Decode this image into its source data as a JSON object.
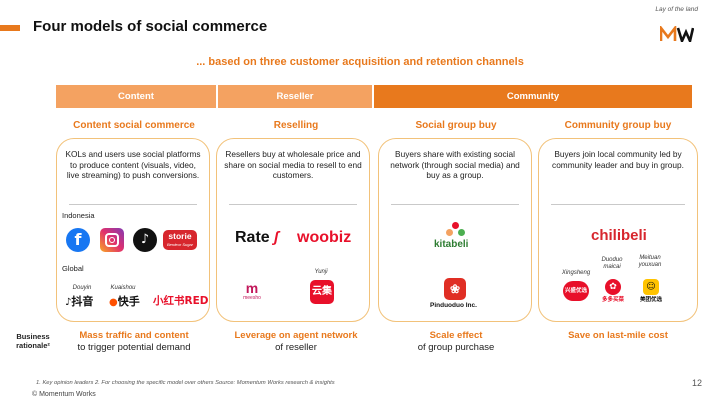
{
  "header": {
    "title": "Four models of social commerce",
    "corner_note": "Lay of the land"
  },
  "subtitle": "... based on three customer acquisition and retention channels",
  "channels": [
    {
      "label": "Content"
    },
    {
      "label": "Reseller"
    },
    {
      "label": "Community"
    }
  ],
  "models": [
    {
      "title": "Content social commerce",
      "description": "KOLs and users use social platforms to produce content (visuals, video, live streaming) to push conversions.",
      "region_1": "Indonesia",
      "region_2": "Global",
      "brand_storie": "storie",
      "brand_storie_tag": "Berdeur Sugar",
      "cap_douyin": "Douyin",
      "cap_kuaishou": "Kuaishou",
      "brand_douyin": "抖音",
      "brand_kuaishou": "快手",
      "brand_xhs": "小红书RED"
    },
    {
      "title": "Reselling",
      "description": "Resellers buy at wholesale price and share on social media to resell to end customers.",
      "brand_rate": "Rate",
      "brand_woobiz": "woobiz",
      "cap_yunji": "Yunji",
      "brand_yunji": "云集",
      "brand_meesho": "meesho"
    },
    {
      "title": "Social group buy",
      "description": "Buyers share with existing social network (through social media) and buy as a group.",
      "brand_kitabeli": "kitabeli",
      "brand_pinduoduo": "Pinduoduo Inc."
    },
    {
      "title": "Community group buy",
      "description": "Buyers join local community led by community leader and buy in group.",
      "brand_chilibeli": "chilibeli",
      "cap_xingsheng": "Xingsheng",
      "cap_duoduo": "Duoduo maicai",
      "cap_meituan": "Meituan youxuan",
      "brand_xingsheng": "兴盛优选",
      "brand_duoduo": "多多买菜",
      "brand_meituan": "美团优选"
    }
  ],
  "rationale": {
    "row_label": "Business rationale²",
    "items": [
      {
        "strong": "Mass traffic and content",
        "rest": "to trigger potential demand"
      },
      {
        "strong": "Leverage on agent network",
        "rest": "of reseller"
      },
      {
        "strong": "Scale effect",
        "rest": "of group purchase"
      },
      {
        "strong": "Save on last-mile cost",
        "rest": ""
      }
    ]
  },
  "footer": {
    "footnote": "1. Key opinion leaders   2. For choosing the specific model over others   Source: Momentum Works research & insights",
    "copyright": "© Momentum Works",
    "page_number": "12"
  },
  "colors": {
    "accent": "#E8791D",
    "light_accent": "#F4A261",
    "card_border": "#F2C27A"
  }
}
